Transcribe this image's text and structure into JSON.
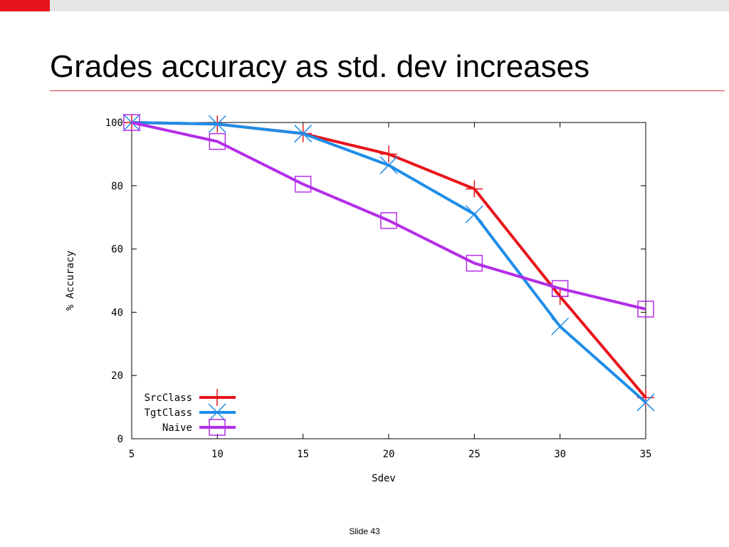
{
  "slide": {
    "title": "Grades accuracy as std. dev increases",
    "slide_number": "Slide 43",
    "accent_color": "#e8141b",
    "bar_color": "#e6e6e6",
    "rule_color": "#d9333a"
  },
  "chart_data": {
    "type": "line",
    "title": "",
    "xlabel": "Sdev",
    "ylabel": "% Accuracy",
    "x": [
      5,
      10,
      15,
      20,
      25,
      30,
      35
    ],
    "xticks": [
      5,
      10,
      15,
      20,
      25,
      30,
      35
    ],
    "yticks": [
      0,
      20,
      40,
      60,
      80,
      100
    ],
    "xlim": [
      5,
      35
    ],
    "ylim": [
      0,
      100
    ],
    "grid": false,
    "legend_position": "bottom-left",
    "series": [
      {
        "name": "SrcClass",
        "values": [
          100,
          99.5,
          96.5,
          90,
          79,
          45,
          13
        ],
        "color": "#e8141b",
        "marker": "plus"
      },
      {
        "name": "TgtClass",
        "values": [
          100,
          99.5,
          96.5,
          86.5,
          71,
          35.5,
          11.5
        ],
        "color": "#1e8de8",
        "marker": "cross"
      },
      {
        "name": "Naive",
        "values": [
          100,
          94,
          80.5,
          69,
          55.5,
          47.5,
          41
        ],
        "color": "#b32ee8",
        "marker": "square"
      }
    ]
  }
}
